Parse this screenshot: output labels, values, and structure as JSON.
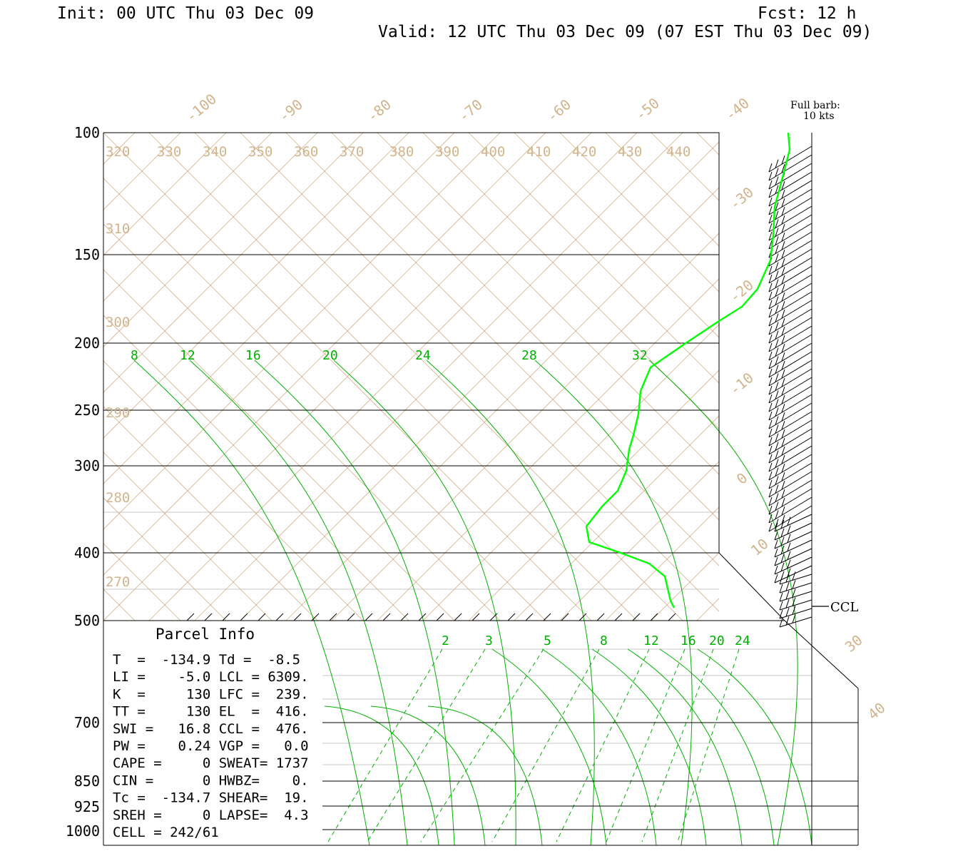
{
  "header": {
    "init": "Init: 00 UTC Thu 03 Dec 09",
    "fcst": "Fcst:   12 h",
    "valid": "Valid: 12 UTC Thu 03 Dec 09 (07 EST Thu 03 Dec 09)"
  },
  "barb_legend": {
    "line1": "Full barb:",
    "line2": "10 kts"
  },
  "ccl_label": "CCL",
  "parcel_info": {
    "title": "Parcel Info",
    "rows": [
      "T  =  -134.9 Td =  -8.5",
      "LI =    -5.0 LCL = 6309.",
      "K  =     130 LFC =  239.",
      "TT =     130 EL  =  416.",
      "SWI =   16.8 CCL =  476.",
      "PW =    0.24 VGP =   0.0",
      "CAPE =     0 SWEAT= 1737",
      "CIN =      0 HWBZ=    0.",
      "Tc =  -134.7 SHEAR=  19.",
      "SREH =     0 LAPSE=  4.3",
      "CELL = 242/61"
    ]
  },
  "colors": {
    "isotherm": "#d2b48c",
    "adiabat": "#00b000",
    "sounding": "#00ff00",
    "isobar": "#000000",
    "grid_light": "#c8c8c8"
  },
  "chart_data": {
    "type": "line",
    "pressure_labels_upper": [
      "100",
      "150",
      "200",
      "250",
      "300",
      "400",
      "500"
    ],
    "pressure_labels_lower": [
      "700",
      "850",
      "925",
      "1000"
    ],
    "temperature_labels": [
      "-100",
      "-90",
      "-80",
      "-70",
      "-60",
      "-50",
      "-40",
      "-30",
      "-20",
      "-10",
      "0",
      "10",
      "30",
      "40"
    ],
    "theta_labels_top": [
      "320",
      "330",
      "340",
      "350",
      "360",
      "370",
      "380",
      "390",
      "400",
      "410",
      "420",
      "430",
      "440"
    ],
    "theta_labels_left": [
      "310",
      "300",
      "290",
      "280",
      "270"
    ],
    "saturated_adiabat_labels": [
      "8",
      "12",
      "16",
      "20",
      "24",
      "28",
      "32"
    ],
    "mixing_ratio_labels": [
      "2",
      "3",
      "5",
      "8",
      "12",
      "16",
      "20",
      "24"
    ],
    "series": [
      {
        "temperature_c_approx": [
          -40,
          -43,
          -45,
          -46,
          -47,
          -30,
          -20,
          -12,
          -10,
          -9,
          -8,
          -6,
          -14,
          -16,
          -15,
          -10,
          -5,
          -2,
          0,
          1
        ]
      }
    ]
  }
}
